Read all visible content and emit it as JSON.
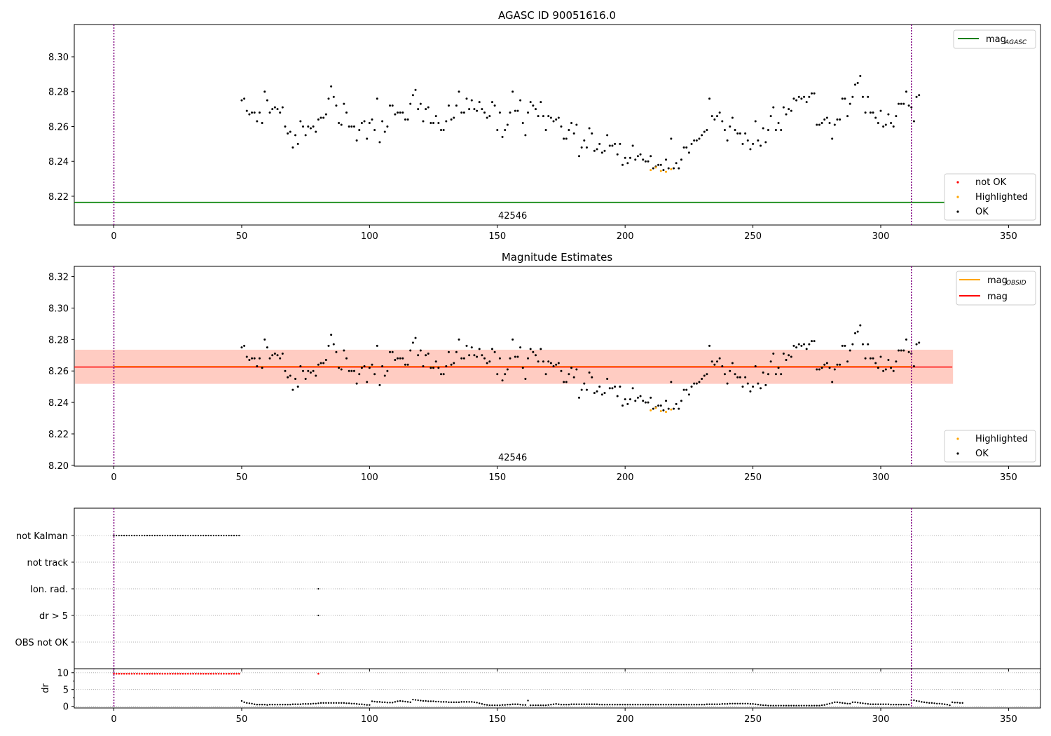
{
  "chart_data": [
    {
      "type": "scatter",
      "title": "AGASC ID 90051616.0",
      "xlim": [
        -15.5,
        362.5
      ],
      "ylim": [
        8.2035,
        8.3185
      ],
      "x_ticks": [
        0,
        50,
        100,
        150,
        200,
        250,
        300,
        350
      ],
      "y_ticks": [
        8.22,
        8.24,
        8.26,
        8.28,
        8.3
      ],
      "vlines": [
        0,
        312
      ],
      "hlines": [
        {
          "name": "mag_AGASC",
          "y": 8.2165,
          "x_range": [
            -15.5,
            328
          ],
          "color": "#008000"
        }
      ],
      "annotation": "42546",
      "annotation_x": 156,
      "legend_upper": [
        {
          "label": "mag",
          "subscript": "AGASC",
          "color": "#008000",
          "kind": "line"
        }
      ],
      "legend_lower": [
        {
          "label": "not OK",
          "color": "#ff0000",
          "kind": "point"
        },
        {
          "label": "Highlighted",
          "color": "#ffa500",
          "kind": "point"
        },
        {
          "label": "OK",
          "color": "#000000",
          "kind": "point"
        }
      ]
    },
    {
      "type": "scatter",
      "title": "Magnitude Estimates",
      "xlim": [
        -15.5,
        362.5
      ],
      "ylim": [
        8.1995,
        8.3265
      ],
      "x_ticks": [
        0,
        50,
        100,
        150,
        200,
        250,
        300,
        350
      ],
      "y_ticks": [
        8.2,
        8.22,
        8.24,
        8.26,
        8.28,
        8.3,
        8.32
      ],
      "vlines": [
        0,
        312
      ],
      "hlines": [
        {
          "name": "mag_OBSID",
          "y": 8.2627,
          "x_range": [
            0,
            312
          ],
          "color": "#ffa500"
        },
        {
          "name": "mag",
          "y": 8.2625,
          "x_range": [
            -15.5,
            328
          ],
          "color": "#ff0000"
        }
      ],
      "bands": [
        {
          "y_range": [
            8.2517,
            8.2735
          ],
          "x_range": [
            -15.5,
            328
          ],
          "color": "#ffc0cb"
        },
        {
          "y_range": [
            8.2519,
            8.2735
          ],
          "x_range": [
            -15.5,
            328
          ],
          "color": "#ffa07a"
        }
      ],
      "annotation": "42546",
      "annotation_x": 156,
      "legend_upper": [
        {
          "label": "mag",
          "subscript": "OBSID",
          "color": "#ffa500",
          "kind": "line"
        },
        {
          "label": "mag",
          "subscript": "",
          "color": "#ff0000",
          "kind": "line"
        }
      ],
      "legend_lower": [
        {
          "label": "Highlighted",
          "color": "#ffa500",
          "kind": "point"
        },
        {
          "label": "OK",
          "color": "#000000",
          "kind": "point"
        }
      ]
    },
    {
      "type": "scatter",
      "xlim": [
        -15.5,
        362.5
      ],
      "x_ticks": [
        0,
        50,
        100,
        150,
        200,
        250,
        300,
        350
      ],
      "categories": [
        "not Kalman",
        "not track",
        "Ion. rad.",
        "dr > 5",
        "OBS not OK"
      ],
      "flags": [
        {
          "category": "not Kalman",
          "x_range": [
            0,
            49
          ],
          "step": 1
        },
        {
          "category": "Ion. rad.",
          "x": [
            80
          ]
        },
        {
          "category": "dr > 5",
          "x": [
            80
          ]
        }
      ],
      "vlines": [
        0,
        312
      ]
    },
    {
      "type": "scatter",
      "ylabel": "dr",
      "xlim": [
        -15.5,
        362.5
      ],
      "ylim": [
        -0.5,
        11.2
      ],
      "y_ticks": [
        0,
        5,
        10
      ],
      "x_ticks": [
        0,
        50,
        100,
        150,
        200,
        250,
        300,
        350
      ],
      "vlines": [
        0,
        312
      ],
      "red_points": {
        "x_range": [
          0,
          49
        ],
        "y": 9.7,
        "extra": [
          [
            80,
            9.7
          ]
        ]
      }
    }
  ],
  "mag_series": {
    "x_start": 50,
    "values": [
      8.275,
      8.276,
      8.269,
      8.267,
      8.268,
      8.268,
      8.263,
      8.268,
      8.262,
      8.28,
      8.275,
      8.268,
      8.27,
      8.271,
      8.27,
      8.268,
      8.271,
      8.26,
      8.256,
      8.257,
      8.248,
      8.255,
      8.25,
      8.263,
      8.26,
      8.255,
      8.26,
      8.259,
      8.26,
      8.257,
      8.264,
      8.265,
      8.265,
      8.267,
      8.276,
      8.283,
      8.277,
      8.272,
      8.262,
      8.261,
      8.273,
      8.268,
      8.26,
      8.26,
      8.26,
      8.252,
      8.258,
      8.262,
      8.263,
      8.253,
      8.262,
      8.264,
      8.258,
      8.276,
      8.251,
      8.263,
      8.257,
      8.26,
      8.272,
      8.272,
      8.267,
      8.268,
      8.268,
      8.268,
      8.264,
      8.264,
      8.273,
      8.278,
      8.281,
      8.27,
      8.273,
      8.263,
      8.27,
      8.271,
      8.262,
      8.262,
      8.266,
      8.262,
      8.258,
      8.258,
      8.263,
      8.272,
      8.264,
      8.265,
      8.272,
      8.28,
      8.268,
      8.268,
      8.276,
      8.27,
      8.275,
      8.27,
      8.269,
      8.274,
      8.27,
      8.268,
      8.265,
      8.266,
      8.274,
      8.272,
      8.258,
      8.268,
      8.254,
      8.258,
      8.261,
      8.268,
      8.28,
      8.269,
      8.269,
      8.275,
      8.262,
      8.255,
      8.268,
      8.274,
      8.272,
      8.27,
      8.266,
      8.274,
      8.266,
      8.258,
      8.266,
      8.265,
      8.263,
      8.264,
      8.265,
      8.26,
      8.253,
      8.253,
      8.258,
      8.262,
      8.256,
      8.261,
      8.243,
      8.248,
      8.252,
      8.248,
      8.259,
      8.256,
      8.246,
      8.247,
      8.25,
      8.245,
      8.246,
      8.255,
      8.249,
      8.249,
      8.25,
      8.244,
      8.25,
      8.238,
      8.242,
      8.239,
      8.242,
      8.249,
      8.241,
      8.243,
      8.244,
      8.241,
      8.24,
      8.24,
      8.243,
      8.236,
      8.237,
      8.238,
      8.238,
      8.235,
      8.241,
      8.236,
      8.253,
      8.236,
      8.239,
      8.236,
      8.241,
      8.248,
      8.248,
      8.245,
      8.25,
      8.252,
      8.252,
      8.253,
      8.255,
      8.257,
      8.258,
      8.276,
      8.266,
      8.264,
      8.266,
      8.268,
      8.263,
      8.258,
      8.252,
      8.26,
      8.265,
      8.258,
      8.256,
      8.256,
      8.25,
      8.256,
      8.252,
      8.247,
      8.25,
      8.263,
      8.252,
      8.249,
      8.259,
      8.251,
      8.258,
      8.266,
      8.271,
      8.258,
      8.262,
      8.258,
      8.271,
      8.267,
      8.27,
      8.269,
      8.276,
      8.275,
      8.277,
      8.276,
      8.277,
      8.274,
      8.277,
      8.279,
      8.279,
      8.261,
      8.261,
      8.262,
      8.264,
      8.265,
      8.262,
      8.253,
      8.261,
      8.264,
      8.264,
      8.276,
      8.276,
      8.266,
      8.273,
      8.277,
      8.284,
      8.285,
      8.289,
      8.277,
      8.268,
      8.277,
      8.268,
      8.268,
      8.265,
      8.262,
      8.269,
      8.26,
      8.261,
      8.267,
      8.262,
      8.26,
      8.266,
      8.273,
      8.273,
      8.273,
      8.28,
      8.272,
      8.271,
      8.263,
      8.277,
      8.278
    ],
    "highlighted": [
      [
        210,
        8.235
      ],
      [
        212,
        8.2365
      ],
      [
        214,
        8.2345
      ],
      [
        216,
        8.234
      ],
      [
        218,
        8.2355
      ]
    ]
  },
  "dr_series": {
    "x_start": 50,
    "values": [
      1.6,
      1.2,
      1.0,
      0.9,
      0.8,
      0.6,
      0.5,
      0.5,
      0.5,
      0.5,
      0.4,
      0.5,
      0.5,
      0.5,
      0.5,
      0.5,
      0.5,
      0.5,
      0.5,
      0.5,
      0.6,
      0.6,
      0.6,
      0.6,
      0.7,
      0.7,
      0.7,
      0.7,
      0.8,
      0.8,
      0.9,
      1.0,
      1.0,
      1.0,
      1.0,
      1.0,
      1.0,
      1.0,
      1.0,
      1.0,
      1.0,
      0.9,
      0.9,
      0.8,
      0.8,
      0.7,
      0.6,
      0.6,
      0.5,
      0.4,
      0.4,
      1.5,
      1.4,
      1.3,
      1.3,
      1.2,
      1.2,
      1.1,
      1.1,
      1.1,
      1.3,
      1.5,
      1.6,
      1.5,
      1.4,
      1.3,
      1.2,
      2.0,
      1.9,
      1.8,
      1.7,
      1.6,
      1.6,
      1.5,
      1.5,
      1.5,
      1.4,
      1.4,
      1.3,
      1.3,
      1.3,
      1.2,
      1.2,
      1.2,
      1.2,
      1.2,
      1.3,
      1.3,
      1.3,
      1.3,
      1.3,
      1.2,
      1.1,
      0.9,
      0.7,
      0.5,
      0.4,
      0.3,
      0.3,
      0.3,
      0.3,
      0.3,
      0.4,
      0.4,
      0.5,
      0.5,
      0.6,
      0.6,
      0.6,
      0.5,
      0.4,
      0.4,
      1.7,
      0.3,
      0.3,
      0.3,
      0.3,
      0.3,
      0.3,
      0.3,
      0.4,
      0.5,
      0.6,
      0.7,
      0.6,
      0.5,
      0.5,
      0.5,
      0.5,
      0.6,
      0.6,
      0.6,
      0.6,
      0.6,
      0.6,
      0.6,
      0.6,
      0.6,
      0.6,
      0.6,
      0.5,
      0.5,
      0.5,
      0.5,
      0.5,
      0.5,
      0.5,
      0.5,
      0.5,
      0.5,
      0.5,
      0.5,
      0.5,
      0.5,
      0.5,
      0.5,
      0.5,
      0.5,
      0.5,
      0.5,
      0.5,
      0.5,
      0.5,
      0.5,
      0.5,
      0.5,
      0.5,
      0.5,
      0.5,
      0.5,
      0.5,
      0.5,
      0.5,
      0.5,
      0.5,
      0.5,
      0.5,
      0.5,
      0.5,
      0.5,
      0.5,
      0.5,
      0.6,
      0.6,
      0.6,
      0.6,
      0.6,
      0.6,
      0.7,
      0.7,
      0.7,
      0.8,
      0.8,
      0.8,
      0.8,
      0.8,
      0.8,
      0.8,
      0.8,
      0.7,
      0.7,
      0.6,
      0.5,
      0.4,
      0.3,
      0.3,
      0.2,
      0.2,
      0.2,
      0.2,
      0.2,
      0.2,
      0.2,
      0.2,
      0.2,
      0.2,
      0.2,
      0.2,
      0.2,
      0.2,
      0.2,
      0.2,
      0.2,
      0.2,
      0.2,
      0.2,
      0.2,
      0.3,
      0.4,
      0.6,
      0.8,
      1.0,
      1.2,
      1.2,
      1.1,
      1.0,
      0.9,
      0.8,
      0.8,
      1.2,
      1.2,
      1.1,
      1.0,
      0.9,
      0.8,
      0.7,
      0.6,
      0.6,
      0.6,
      0.6,
      0.6,
      0.6,
      0.6,
      0.6,
      0.5,
      0.5,
      0.5,
      0.5,
      0.5,
      0.5,
      0.5,
      0.5,
      1.8,
      1.8,
      1.6,
      1.5,
      1.3,
      1.2,
      1.1,
      1.0,
      1.0,
      0.9,
      0.8,
      0.8,
      0.7,
      0.6,
      0.5,
      0.3,
      1.2,
      1.1,
      1.1,
      1.0,
      1.0
    ]
  }
}
